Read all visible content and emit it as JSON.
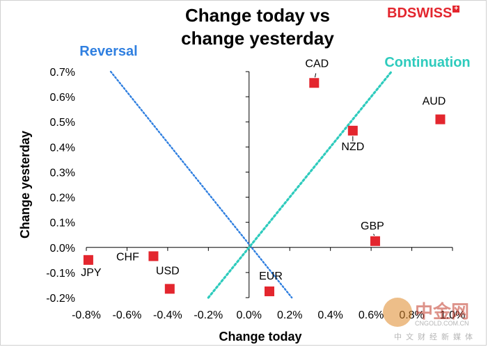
{
  "logo": {
    "brand_bd": "BD",
    "brand_swiss": "SWISS"
  },
  "watermark": {
    "name_cn": "中金网",
    "domain": "CNGOLD.COM.CN",
    "sub_cn": "中文财经新媒体"
  },
  "annotations": {
    "reversal": "Reversal",
    "continuation": "Continuation"
  },
  "colors": {
    "point": "#e3262e",
    "reversal": "#2f7fe0",
    "continuation": "#2ecbbd"
  },
  "chart_data": {
    "type": "scatter",
    "title": "Change today vs change yesterday",
    "title_lines": [
      "Change today vs",
      "change yesterday"
    ],
    "xlabel": "Change today",
    "ylabel": "Change yesterday",
    "xlim": [
      -0.8,
      1.0
    ],
    "ylim": [
      -0.2,
      0.7
    ],
    "x_ticks": [
      "-0.8%",
      "-0.6%",
      "-0.4%",
      "-0.2%",
      "0.0%",
      "0.2%",
      "0.4%",
      "0.6%",
      "0.8%",
      "1.0%"
    ],
    "y_ticks": [
      "-0.2%",
      "-0.1%",
      "0.0%",
      "0.1%",
      "0.2%",
      "0.3%",
      "0.4%",
      "0.5%",
      "0.6%",
      "0.7%"
    ],
    "points": [
      {
        "label": "CAD",
        "x": 0.32,
        "y": 0.655
      },
      {
        "label": "AUD",
        "x": 0.94,
        "y": 0.51
      },
      {
        "label": "NZD",
        "x": 0.51,
        "y": 0.465
      },
      {
        "label": "GBP",
        "x": 0.62,
        "y": 0.025
      },
      {
        "label": "CHF",
        "x": -0.47,
        "y": -0.035
      },
      {
        "label": "JPY",
        "x": -0.79,
        "y": -0.05
      },
      {
        "label": "USD",
        "x": -0.39,
        "y": -0.165
      },
      {
        "label": "EUR",
        "x": 0.1,
        "y": -0.175
      }
    ],
    "guides": [
      {
        "name": "Reversal",
        "from": [
          -0.68,
          0.7
        ],
        "to": [
          0.21,
          -0.2
        ]
      },
      {
        "name": "Continuation",
        "from": [
          -0.2,
          -0.2
        ],
        "to": [
          0.7,
          0.7
        ]
      }
    ],
    "grid": false,
    "legend": "none"
  }
}
